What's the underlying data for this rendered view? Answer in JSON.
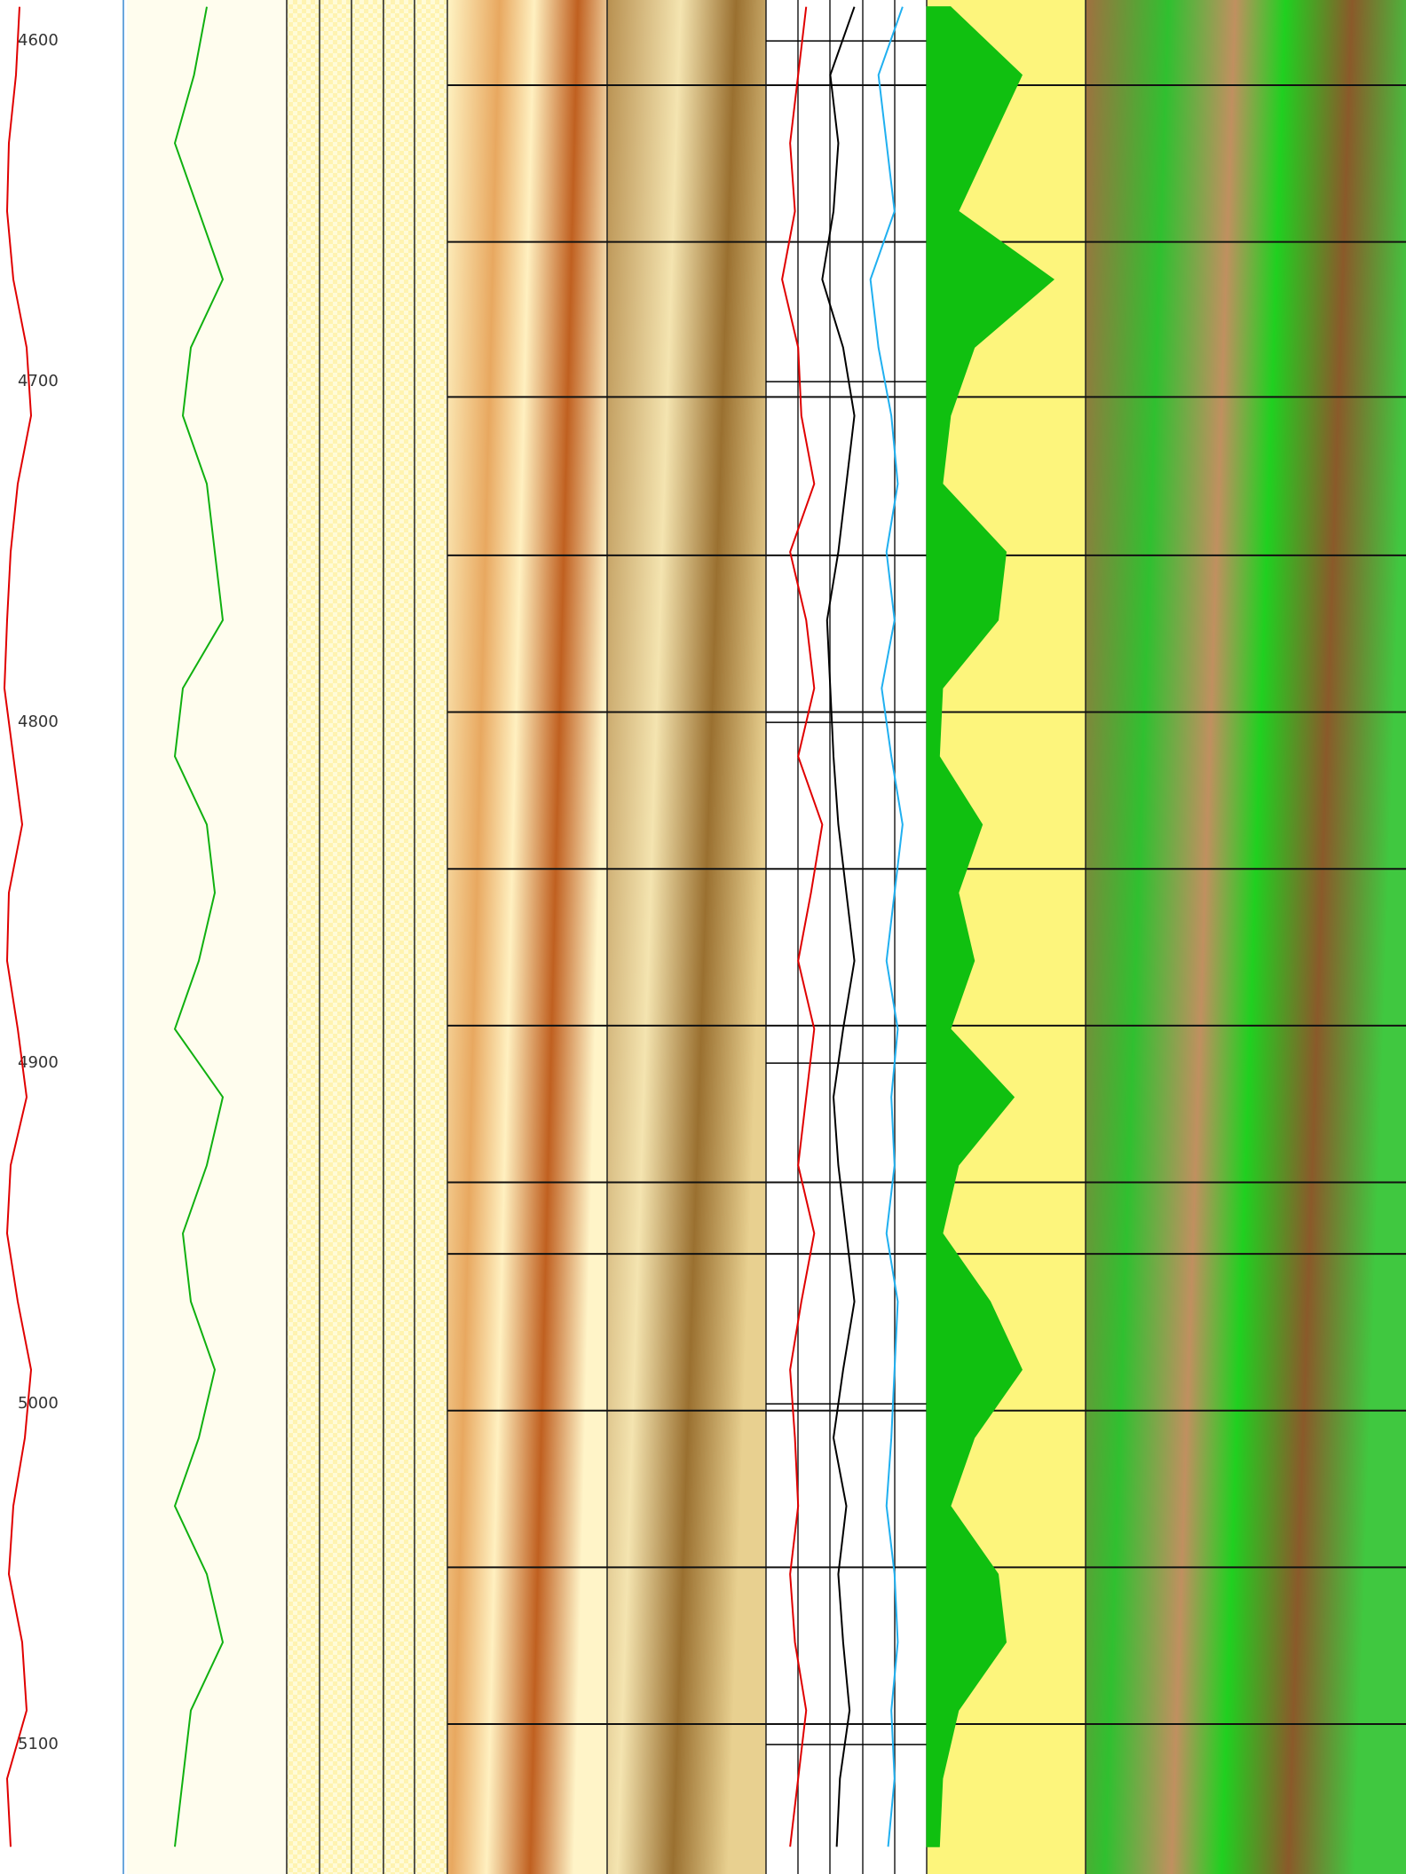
{
  "chart_data": {
    "type": "well_log",
    "ylim": [
      4588,
      5138
    ],
    "yticks": [
      4600,
      4700,
      4800,
      4900,
      5000,
      5100
    ],
    "xlim": [
      0,
      100
    ],
    "section_breaks": [
      4613,
      4659,
      4704.5,
      4751,
      4797,
      4843,
      4889,
      4935,
      4956,
      5002,
      5048,
      5094
    ],
    "depths": [
      4590,
      4610,
      4630,
      4650,
      4670,
      4690,
      4710,
      4730,
      4750,
      4770,
      4790,
      4810,
      4830,
      4850,
      4870,
      4890,
      4910,
      4930,
      4950,
      4970,
      4990,
      5010,
      5030,
      5050,
      5070,
      5090,
      5110,
      5130
    ],
    "series": [
      {
        "color": "#e00000",
        "values": [
          22,
          18,
          10,
          8,
          15,
          30,
          35,
          20,
          12,
          8,
          5,
          15,
          25,
          10,
          8,
          20,
          30,
          12,
          8,
          20,
          35,
          28,
          15,
          10,
          25,
          30,
          8,
          12
        ]
      },
      {
        "color": "#10b010",
        "values": [
          50,
          42,
          30,
          45,
          60,
          40,
          35,
          50,
          55,
          60,
          35,
          30,
          50,
          55,
          45,
          30,
          60,
          50,
          35,
          40,
          55,
          45,
          30,
          50,
          60,
          40,
          35,
          30
        ]
      },
      {
        "color": "#e00000",
        "values": [
          25,
          20,
          15,
          18,
          10,
          20,
          22,
          30,
          15,
          25,
          30,
          20,
          35,
          28,
          20,
          30,
          25,
          20,
          30,
          22,
          15,
          18,
          20,
          15,
          18,
          25,
          20,
          15
        ]
      },
      {
        "color": "#000000",
        "values": [
          55,
          40,
          45,
          42,
          35,
          48,
          55,
          50,
          45,
          38,
          40,
          42,
          45,
          50,
          55,
          48,
          42,
          45,
          50,
          55,
          48,
          42,
          50,
          45,
          48,
          52,
          46,
          44
        ]
      },
      {
        "color": "#20b0f0",
        "values": [
          85,
          70,
          75,
          80,
          65,
          70,
          78,
          82,
          75,
          80,
          72,
          78,
          85,
          80,
          75,
          82,
          78,
          80,
          75,
          82,
          80,
          78,
          75,
          80,
          82,
          78,
          80,
          76
        ]
      },
      {
        "color": "#10c010",
        "fill": true,
        "values": [
          15,
          60,
          40,
          20,
          80,
          30,
          15,
          10,
          50,
          45,
          10,
          8,
          35,
          20,
          30,
          15,
          55,
          20,
          10,
          40,
          60,
          30,
          15,
          45,
          50,
          20,
          10,
          8
        ]
      }
    ]
  }
}
